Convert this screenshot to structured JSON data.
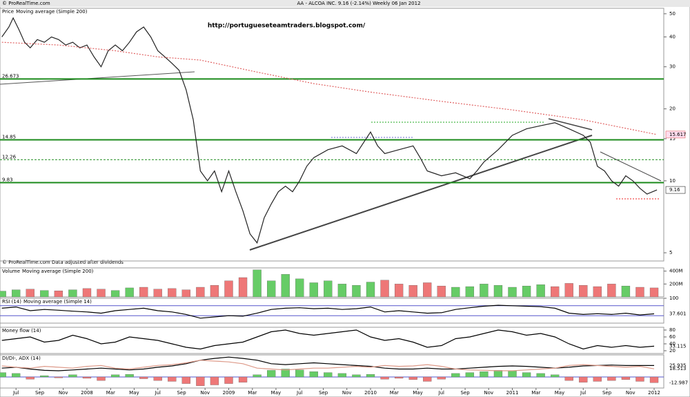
{
  "chart_data": [
    {
      "type": "line",
      "title": "Price",
      "subtitle": "Moving average (Simple 200)",
      "header": "AA - ALCOA INC.    9.16 (-2.14%)    Weekly  06 Jan 2012",
      "source": "© ProRealTime.com",
      "annotation": "http://portugueseteamtraders.blogspot.com/",
      "note": "© ProRealTime.com  Data adjusted after dividends",
      "log": true,
      "ylim": [
        4.62,
        52.7
      ],
      "yticks": [
        50,
        40,
        30,
        20,
        15,
        10,
        5
      ],
      "xlim": [
        2007.387,
        2012.068
      ],
      "xticks": [
        {
          "value": 2007.5,
          "label": "Jul"
        },
        {
          "value": 2007.667,
          "label": "Sep"
        },
        {
          "value": 2007.833,
          "label": "Nov"
        },
        {
          "value": 2008,
          "label": "2008"
        },
        {
          "value": 2008.167,
          "label": "Mar"
        },
        {
          "value": 2008.333,
          "label": "May"
        },
        {
          "value": 2008.5,
          "label": "Jul"
        },
        {
          "value": 2008.667,
          "label": "Sep"
        },
        {
          "value": 2008.833,
          "label": "Nov"
        },
        {
          "value": 2009,
          "label": "2009"
        },
        {
          "value": 2009.167,
          "label": "Mar"
        },
        {
          "value": 2009.333,
          "label": "May"
        },
        {
          "value": 2009.5,
          "label": "Jul"
        },
        {
          "value": 2009.667,
          "label": "Sep"
        },
        {
          "value": 2009.833,
          "label": "Nov"
        },
        {
          "value": 2010,
          "label": "2010"
        },
        {
          "value": 2010.167,
          "label": "Mar"
        },
        {
          "value": 2010.333,
          "label": "May"
        },
        {
          "value": 2010.5,
          "label": "Jul"
        },
        {
          "value": 2010.667,
          "label": "Sep"
        },
        {
          "value": 2010.833,
          "label": "Nov"
        },
        {
          "value": 2011,
          "label": "2011"
        },
        {
          "value": 2011.167,
          "label": "Mar"
        },
        {
          "value": 2011.333,
          "label": "May"
        },
        {
          "value": 2011.5,
          "label": "Jul"
        },
        {
          "value": 2011.667,
          "label": "Sep"
        },
        {
          "value": 2011.833,
          "label": "Nov"
        },
        {
          "value": 2012,
          "label": "2012"
        }
      ],
      "levels": [
        26.673,
        14.85,
        12.26,
        9.83
      ],
      "level_color": "#1a8a1a",
      "level_styles": [
        "solid",
        "solid",
        "dashed",
        "solid"
      ],
      "level_labels": true,
      "subtitle_color": "#d33",
      "series": [
        {
          "color": "#222",
          "last": true,
          "last_box": "#fff",
          "x": [
            2007.4,
            2007.45,
            2007.48,
            2007.52,
            2007.56,
            2007.6,
            2007.65,
            2007.7,
            2007.75,
            2007.8,
            2007.85,
            2007.9,
            2007.95,
            2008.0,
            2008.05,
            2008.1,
            2008.15,
            2008.2,
            2008.25,
            2008.3,
            2008.35,
            2008.4,
            2008.45,
            2008.5,
            2008.55,
            2008.6,
            2008.65,
            2008.7,
            2008.75,
            2008.8,
            2008.85,
            2008.9,
            2008.95,
            2009.0,
            2009.05,
            2009.1,
            2009.15,
            2009.2,
            2009.25,
            2009.3,
            2009.35,
            2009.4,
            2009.45,
            2009.5,
            2009.55,
            2009.6,
            2009.7,
            2009.8,
            2009.9,
            2010.0,
            2010.05,
            2010.1,
            2010.2,
            2010.3,
            2010.35,
            2010.4,
            2010.5,
            2010.6,
            2010.7,
            2010.75,
            2010.8,
            2010.9,
            2011.0,
            2011.1,
            2011.2,
            2011.3,
            2011.35,
            2011.4,
            2011.5,
            2011.55,
            2011.6,
            2011.65,
            2011.7,
            2011.75,
            2011.8,
            2011.85,
            2011.9,
            2011.95,
            2012.02
          ],
          "values": [
            40,
            44,
            48,
            43,
            38,
            36,
            39,
            38,
            40,
            39,
            37,
            38,
            36,
            37,
            33,
            30,
            35,
            37,
            35,
            38,
            42,
            44,
            40,
            35,
            33,
            31,
            29,
            24,
            18,
            11,
            10,
            11,
            9,
            11,
            9,
            7.5,
            6,
            5.5,
            7,
            8,
            9,
            9.5,
            9,
            10,
            11.5,
            12.5,
            13.5,
            14,
            13,
            16,
            14,
            13,
            13.5,
            14,
            12.5,
            11,
            10.5,
            10.8,
            10.2,
            11,
            12,
            13.5,
            15.5,
            16.5,
            17,
            17.5,
            17,
            16.5,
            15.5,
            14.5,
            11.5,
            11,
            10,
            9.5,
            10.5,
            10,
            9.3,
            8.8,
            9.16
          ]
        },
        {
          "color": "#e06060",
          "dash": "2,2",
          "last": true,
          "last_box": "#fde",
          "x": [
            2007.4,
            2007.8,
            2008.2,
            2008.5,
            2008.8,
            2009.2,
            2009.6,
            2010.0,
            2010.5,
            2011.0,
            2011.5,
            2012.02
          ],
          "values": [
            38,
            37,
            35,
            33,
            32,
            28.5,
            25.5,
            23.5,
            21.5,
            19.8,
            18,
            15.617
          ]
        }
      ]
    },
    {
      "type": "bar",
      "title": "Volume",
      "subtitle": "Moving average (Simple 200)",
      "subtitle_color": "#d33",
      "ylim": [
        0,
        450
      ],
      "yticks": [
        {
          "value": 400,
          "label": "400M"
        },
        {
          "value": 200,
          "label": "200M"
        }
      ],
      "x": [
        2007.4,
        2007.5,
        2007.6,
        2007.7,
        2007.8,
        2007.9,
        2008,
        2008.1,
        2008.2,
        2008.3,
        2008.4,
        2008.5,
        2008.6,
        2008.7,
        2008.8,
        2008.9,
        2009,
        2009.1,
        2009.2,
        2009.3,
        2009.4,
        2009.5,
        2009.6,
        2009.7,
        2009.8,
        2009.9,
        2010,
        2010.1,
        2010.2,
        2010.3,
        2010.4,
        2010.5,
        2010.6,
        2010.7,
        2010.8,
        2010.9,
        2011,
        2011.1,
        2011.2,
        2011.3,
        2011.4,
        2011.5,
        2011.6,
        2011.7,
        2011.8,
        2011.9,
        2012
      ],
      "values": [
        90,
        110,
        120,
        100,
        95,
        110,
        130,
        120,
        100,
        140,
        150,
        120,
        130,
        110,
        150,
        180,
        250,
        300,
        420,
        250,
        350,
        280,
        220,
        250,
        200,
        180,
        230,
        260,
        200,
        180,
        220,
        170,
        150,
        160,
        200,
        180,
        150,
        170,
        190,
        160,
        210,
        180,
        160,
        200,
        170,
        150,
        140
      ],
      "colors": [
        "#6c6",
        "#6c6",
        "#e77",
        "#6c6",
        "#e77",
        "#6c6",
        "#e77",
        "#e77",
        "#6c6",
        "#6c6",
        "#e77",
        "#e77",
        "#e77",
        "#e77",
        "#e77",
        "#e77",
        "#e77",
        "#e77",
        "#6c6",
        "#6c6",
        "#6c6",
        "#6c6",
        "#6c6",
        "#6c6",
        "#6c6",
        "#6c6",
        "#6c6",
        "#e77",
        "#e77",
        "#e77",
        "#e77",
        "#e77",
        "#6c6",
        "#6c6",
        "#6c6",
        "#6c6",
        "#6c6",
        "#6c6",
        "#6c6",
        "#e77",
        "#e77",
        "#e77",
        "#e77",
        "#e77",
        "#6c6",
        "#e77",
        "#e77"
      ]
    },
    {
      "type": "line",
      "title": "RSI (14)",
      "subtitle": "Moving average (Simple 14)",
      "subtitle_color": "#d33",
      "ylim": [
        0,
        100
      ],
      "yticks": [
        100
      ],
      "levels": [
        70,
        30
      ],
      "level_color": "#55c",
      "level_styles": [
        "solid",
        "solid"
      ],
      "x": [
        2007.4,
        2007.5,
        2007.6,
        2007.7,
        2007.8,
        2007.9,
        2008,
        2008.1,
        2008.2,
        2008.3,
        2008.4,
        2008.5,
        2008.6,
        2008.7,
        2008.8,
        2008.9,
        2009,
        2009.1,
        2009.2,
        2009.3,
        2009.4,
        2009.5,
        2009.6,
        2009.7,
        2009.8,
        2009.9,
        2010,
        2010.1,
        2010.2,
        2010.3,
        2010.4,
        2010.5,
        2010.6,
        2010.7,
        2010.8,
        2010.9,
        2011,
        2011.1,
        2011.2,
        2011.3,
        2011.4,
        2011.5,
        2011.6,
        2011.7,
        2011.8,
        2011.9,
        2012
      ],
      "series": [
        {
          "color": "#000",
          "last": true,
          "values": [
            60,
            65,
            50,
            55,
            52,
            48,
            45,
            40,
            50,
            55,
            60,
            50,
            45,
            35,
            20,
            25,
            30,
            28,
            40,
            55,
            60,
            62,
            58,
            60,
            55,
            58,
            65,
            45,
            50,
            45,
            40,
            42,
            55,
            62,
            68,
            72,
            70,
            68,
            66,
            60,
            40,
            35,
            38,
            35,
            40,
            33,
            37.601
          ]
        }
      ]
    },
    {
      "type": "line",
      "title": "Money flow (14)",
      "ylim": [
        12,
        88
      ],
      "yticks": [
        80,
        60,
        40,
        20
      ],
      "x": [
        2007.4,
        2007.5,
        2007.6,
        2007.7,
        2007.8,
        2007.9,
        2008,
        2008.1,
        2008.2,
        2008.3,
        2008.4,
        2008.5,
        2008.6,
        2008.7,
        2008.8,
        2008.9,
        2009,
        2009.1,
        2009.2,
        2009.3,
        2009.4,
        2009.5,
        2009.6,
        2009.7,
        2009.8,
        2009.9,
        2010,
        2010.1,
        2010.2,
        2010.3,
        2010.4,
        2010.5,
        2010.6,
        2010.7,
        2010.8,
        2010.9,
        2011,
        2011.1,
        2011.2,
        2011.3,
        2011.4,
        2011.5,
        2011.6,
        2011.7,
        2011.8,
        2011.9,
        2012
      ],
      "series": [
        {
          "color": "#000",
          "last": true,
          "values": [
            50,
            55,
            60,
            45,
            50,
            65,
            55,
            40,
            45,
            60,
            55,
            50,
            40,
            30,
            25,
            35,
            40,
            45,
            60,
            75,
            80,
            70,
            65,
            70,
            75,
            80,
            60,
            50,
            55,
            45,
            30,
            35,
            55,
            60,
            70,
            80,
            75,
            65,
            70,
            60,
            40,
            25,
            35,
            30,
            35,
            30,
            33.115
          ]
        }
      ]
    },
    {
      "type": "bar",
      "title": "DI/DI-, ADX (14)",
      "ylim": [
        -25,
        50
      ],
      "yticks": [],
      "levels": [
        0
      ],
      "level_color": "#55c",
      "level_styles": [
        "solid"
      ],
      "up_color": "#6c6",
      "down_color": "#e77",
      "last": true,
      "x": [
        2007.4,
        2007.5,
        2007.6,
        2007.7,
        2007.8,
        2007.9,
        2008,
        2008.1,
        2008.2,
        2008.3,
        2008.4,
        2008.5,
        2008.6,
        2008.7,
        2008.8,
        2008.9,
        2009,
        2009.1,
        2009.2,
        2009.3,
        2009.4,
        2009.5,
        2009.6,
        2009.7,
        2009.8,
        2009.9,
        2010,
        2010.1,
        2010.2,
        2010.3,
        2010.4,
        2010.5,
        2010.6,
        2010.7,
        2010.8,
        2010.9,
        2011,
        2011.1,
        2011.2,
        2011.3,
        2011.4,
        2011.5,
        2011.6,
        2011.7,
        2011.8,
        2011.9,
        2012
      ],
      "values": [
        10,
        8,
        -5,
        3,
        -2,
        5,
        -3,
        -8,
        5,
        6,
        -4,
        -8,
        -10,
        -15,
        -20,
        -18,
        -15,
        -12,
        5,
        15,
        18,
        16,
        12,
        10,
        8,
        5,
        6,
        -5,
        -3,
        -6,
        -10,
        -5,
        8,
        10,
        12,
        15,
        14,
        10,
        8,
        5,
        -8,
        -12,
        -10,
        -8,
        -6,
        -10,
        -12.987
      ],
      "series": [
        {
          "color": "#000",
          "last": true,
          "values": [
            20,
            22,
            18,
            15,
            14,
            16,
            18,
            20,
            18,
            16,
            18,
            22,
            25,
            30,
            38,
            42,
            45,
            42,
            38,
            30,
            28,
            30,
            32,
            30,
            28,
            26,
            24,
            20,
            18,
            18,
            20,
            18,
            18,
            20,
            22,
            24,
            25,
            24,
            22,
            20,
            22,
            25,
            26,
            27,
            26,
            26,
            25.935
          ]
        },
        {
          "color": "#d98",
          "last": true,
          "values": [
            25,
            22,
            20,
            24,
            22,
            20,
            24,
            26,
            20,
            18,
            22,
            26,
            28,
            32,
            38,
            36,
            34,
            30,
            20,
            18,
            16,
            18,
            20,
            20,
            22,
            24,
            22,
            26,
            24,
            25,
            28,
            24,
            18,
            16,
            15,
            14,
            14,
            16,
            18,
            20,
            26,
            28,
            26,
            24,
            22,
            24,
            18.513
          ]
        }
      ]
    }
  ]
}
